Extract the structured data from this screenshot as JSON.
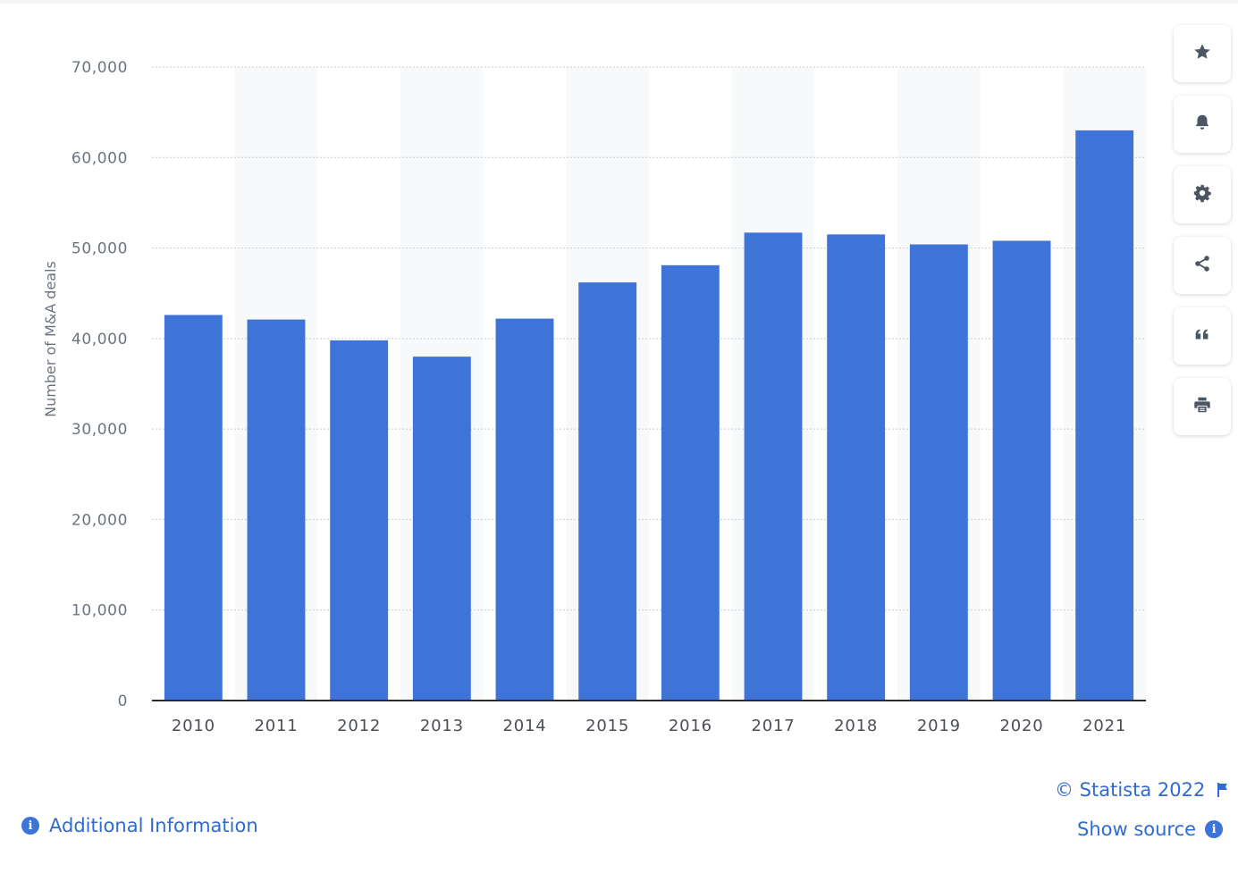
{
  "chart_data": {
    "type": "bar",
    "categories": [
      "2010",
      "2011",
      "2012",
      "2013",
      "2014",
      "2015",
      "2016",
      "2017",
      "2018",
      "2019",
      "2020",
      "2021"
    ],
    "values": [
      42600,
      42100,
      39800,
      38000,
      42200,
      46200,
      48100,
      51700,
      51500,
      50400,
      50800,
      63000
    ],
    "title": "",
    "xlabel": "",
    "ylabel": "Number of M&A deals",
    "ylim": [
      0,
      70000
    ],
    "yticks": [
      {
        "value": 0,
        "label": "0"
      },
      {
        "value": 10000,
        "label": "10,000"
      },
      {
        "value": 20000,
        "label": "20,000"
      },
      {
        "value": 30000,
        "label": "30,000"
      },
      {
        "value": 40000,
        "label": "40,000"
      },
      {
        "value": 50000,
        "label": "50,000"
      },
      {
        "value": 60000,
        "label": "60,000"
      },
      {
        "value": 70000,
        "label": "70,000"
      }
    ],
    "grid": true,
    "legend": "none",
    "bar_color": "#3e74d8"
  },
  "toolbar": {
    "buttons": [
      {
        "icon": "star-icon"
      },
      {
        "icon": "bell-icon"
      },
      {
        "icon": "gear-icon"
      },
      {
        "icon": "share-icon"
      },
      {
        "icon": "quote-icon"
      },
      {
        "icon": "print-icon"
      }
    ]
  },
  "footer": {
    "additional_info": "Additional Information",
    "copyright": "© Statista 2022",
    "show_source": "Show source"
  },
  "colors": {
    "accent": "#2f6bd3",
    "bar": "#3e74d8",
    "icon": "#4c5662"
  }
}
